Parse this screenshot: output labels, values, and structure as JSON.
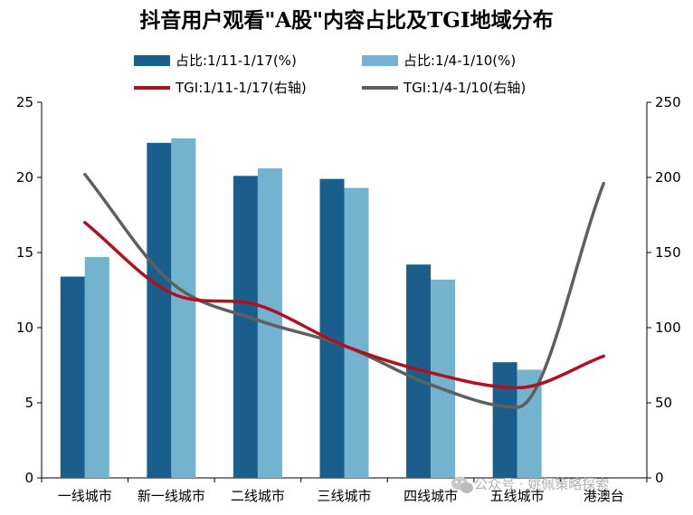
{
  "chart_data": {
    "type": "bar",
    "title": "抖音用户观看\"A股\"内容占比及TGI地域分布",
    "categories": [
      "一线城市",
      "新一线城市",
      "二线城市",
      "三线城市",
      "四线城市",
      "五线城市",
      "港澳台"
    ],
    "series": [
      {
        "name": "占比:1/11-1/17(%)",
        "type": "bar",
        "axis": "left",
        "color": "#1a5e8c",
        "values": [
          13.4,
          22.3,
          20.1,
          19.9,
          14.2,
          7.7,
          null
        ]
      },
      {
        "name": "占比:1/4-1/10(%)",
        "type": "bar",
        "axis": "left",
        "color": "#73b3cf",
        "values": [
          14.7,
          22.6,
          20.6,
          19.3,
          13.2,
          7.2,
          null
        ]
      },
      {
        "name": "TGI:1/11-1/17(右轴)",
        "type": "line",
        "axis": "right",
        "color": "#b01020",
        "values": [
          170,
          123,
          115,
          88,
          70,
          60,
          81
        ]
      },
      {
        "name": "TGI:1/4-1/10(右轴)",
        "type": "line",
        "axis": "right",
        "color": "#5f5f5f",
        "values": [
          202,
          130,
          105,
          88,
          62,
          47,
          196
        ]
      }
    ],
    "y_left": {
      "min": 0,
      "max": 25,
      "ticks": [
        "0",
        "5",
        "10",
        "15",
        "20",
        "25"
      ]
    },
    "y_right": {
      "min": 0,
      "max": 250,
      "ticks": [
        "0",
        "50",
        "100",
        "150",
        "200",
        "250"
      ]
    },
    "grid": false,
    "legend_position": "top",
    "watermark": "公众号 · 姚佩策略探索"
  }
}
